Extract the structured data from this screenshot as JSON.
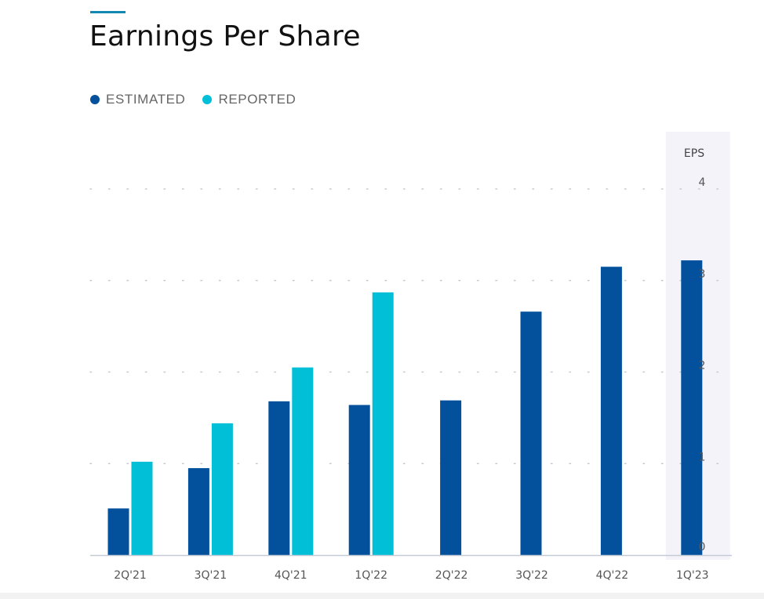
{
  "title": "Earnings Per Share",
  "legend": {
    "items": [
      {
        "label": "ESTIMATED",
        "color": "#03519c"
      },
      {
        "label": "REPORTED",
        "color": "#00bfd6"
      }
    ]
  },
  "chart_data": {
    "type": "bar",
    "title": "Earnings Per Share",
    "xlabel": "",
    "ylabel": "EPS",
    "ylim": [
      0,
      4
    ],
    "yticks": [
      0,
      1,
      2,
      3,
      4
    ],
    "grid": true,
    "legend_position": "top-left",
    "categories": [
      "2Q'21",
      "3Q'21",
      "4Q'21",
      "1Q'22",
      "2Q'22",
      "3Q'22",
      "4Q'22",
      "1Q'23"
    ],
    "series": [
      {
        "name": "ESTIMATED",
        "color": "#03519c",
        "values": [
          0.51,
          0.95,
          1.68,
          1.64,
          1.69,
          2.66,
          3.15,
          3.22
        ]
      },
      {
        "name": "REPORTED",
        "color": "#00bfd6",
        "values": [
          1.02,
          1.44,
          2.05,
          2.87,
          null,
          null,
          null,
          null
        ]
      }
    ],
    "highlighted_category": "1Q'23"
  }
}
